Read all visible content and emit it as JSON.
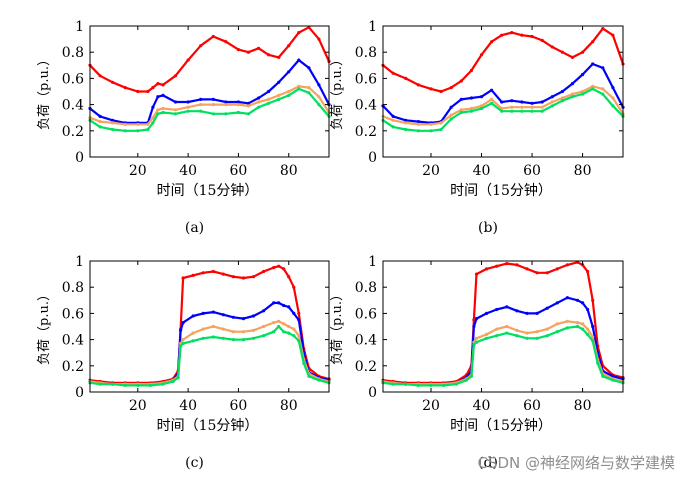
{
  "chart_data": [
    {
      "type": "line",
      "panel_label": "(a)",
      "xlabel": "时间（15分钟）",
      "ylabel": "负荷（p.u.）",
      "xlim": [
        1,
        96
      ],
      "ylim": [
        0,
        1
      ],
      "xticks": [
        20,
        40,
        60,
        80
      ],
      "yticks": [
        0,
        0.2,
        0.4,
        0.6,
        0.8,
        1
      ],
      "ytick_labels": [
        "0",
        "0.2",
        "0.4",
        "0.6",
        "0.8",
        "1"
      ],
      "series": [
        {
          "name": "red",
          "color": "#ff0000",
          "x": [
            1,
            5,
            10,
            15,
            20,
            24,
            26,
            28,
            30,
            35,
            40,
            45,
            50,
            55,
            60,
            64,
            68,
            72,
            76,
            80,
            84,
            88,
            92,
            96
          ],
          "y": [
            0.7,
            0.62,
            0.57,
            0.53,
            0.5,
            0.5,
            0.53,
            0.56,
            0.55,
            0.62,
            0.74,
            0.85,
            0.92,
            0.88,
            0.82,
            0.8,
            0.83,
            0.78,
            0.76,
            0.85,
            0.95,
            0.99,
            0.9,
            0.73
          ]
        },
        {
          "name": "blue",
          "color": "#0000ff",
          "x": [
            1,
            5,
            10,
            15,
            20,
            24,
            26,
            28,
            30,
            35,
            40,
            45,
            50,
            55,
            60,
            64,
            68,
            72,
            76,
            80,
            84,
            88,
            92,
            96
          ],
          "y": [
            0.37,
            0.31,
            0.28,
            0.26,
            0.26,
            0.26,
            0.38,
            0.46,
            0.47,
            0.42,
            0.42,
            0.44,
            0.44,
            0.42,
            0.42,
            0.41,
            0.45,
            0.5,
            0.57,
            0.65,
            0.74,
            0.68,
            0.55,
            0.4
          ]
        },
        {
          "name": "orange",
          "color": "#f4a460",
          "x": [
            1,
            5,
            10,
            15,
            20,
            24,
            26,
            28,
            30,
            35,
            40,
            45,
            50,
            55,
            60,
            64,
            68,
            72,
            76,
            80,
            84,
            88,
            92,
            96
          ],
          "y": [
            0.3,
            0.27,
            0.26,
            0.25,
            0.25,
            0.25,
            0.3,
            0.36,
            0.37,
            0.36,
            0.38,
            0.4,
            0.4,
            0.4,
            0.4,
            0.39,
            0.42,
            0.44,
            0.47,
            0.5,
            0.54,
            0.53,
            0.46,
            0.34
          ]
        },
        {
          "name": "green",
          "color": "#00e060",
          "x": [
            1,
            5,
            10,
            15,
            20,
            24,
            26,
            28,
            30,
            35,
            40,
            45,
            50,
            55,
            60,
            64,
            68,
            72,
            76,
            80,
            84,
            88,
            92,
            96
          ],
          "y": [
            0.28,
            0.23,
            0.21,
            0.2,
            0.2,
            0.21,
            0.26,
            0.33,
            0.34,
            0.33,
            0.35,
            0.35,
            0.33,
            0.33,
            0.34,
            0.33,
            0.38,
            0.41,
            0.44,
            0.47,
            0.52,
            0.49,
            0.4,
            0.31
          ]
        }
      ]
    },
    {
      "type": "line",
      "panel_label": "(b)",
      "xlabel": "时间（15分钟）",
      "ylabel": "负荷（p.u.）",
      "xlim": [
        1,
        96
      ],
      "ylim": [
        0,
        1
      ],
      "xticks": [
        20,
        40,
        60,
        80
      ],
      "yticks": [
        0,
        0.2,
        0.4,
        0.6,
        0.8,
        1
      ],
      "ytick_labels": [
        "0",
        "0.2",
        "0.4",
        "0.6",
        "0.8",
        "1"
      ],
      "series": [
        {
          "name": "red",
          "color": "#ff0000",
          "x": [
            1,
            5,
            10,
            15,
            20,
            24,
            28,
            32,
            36,
            40,
            44,
            48,
            52,
            56,
            60,
            64,
            68,
            72,
            76,
            80,
            84,
            88,
            92,
            96
          ],
          "y": [
            0.7,
            0.64,
            0.6,
            0.55,
            0.52,
            0.5,
            0.53,
            0.58,
            0.66,
            0.78,
            0.88,
            0.93,
            0.95,
            0.93,
            0.92,
            0.89,
            0.84,
            0.8,
            0.76,
            0.8,
            0.88,
            0.98,
            0.93,
            0.71
          ]
        },
        {
          "name": "blue",
          "color": "#0000ff",
          "x": [
            1,
            5,
            10,
            15,
            20,
            24,
            28,
            32,
            36,
            40,
            44,
            48,
            52,
            56,
            60,
            64,
            68,
            72,
            76,
            80,
            84,
            88,
            92,
            96
          ],
          "y": [
            0.39,
            0.31,
            0.28,
            0.27,
            0.26,
            0.27,
            0.38,
            0.44,
            0.45,
            0.46,
            0.51,
            0.42,
            0.43,
            0.42,
            0.41,
            0.42,
            0.46,
            0.5,
            0.56,
            0.63,
            0.71,
            0.68,
            0.53,
            0.38
          ]
        },
        {
          "name": "orange",
          "color": "#f4a460",
          "x": [
            1,
            5,
            10,
            15,
            20,
            24,
            28,
            32,
            36,
            40,
            44,
            48,
            52,
            56,
            60,
            64,
            68,
            72,
            76,
            80,
            84,
            88,
            92,
            96
          ],
          "y": [
            0.31,
            0.28,
            0.26,
            0.25,
            0.25,
            0.26,
            0.32,
            0.36,
            0.37,
            0.39,
            0.44,
            0.37,
            0.38,
            0.38,
            0.38,
            0.38,
            0.42,
            0.45,
            0.48,
            0.5,
            0.54,
            0.52,
            0.45,
            0.33
          ]
        },
        {
          "name": "green",
          "color": "#00e060",
          "x": [
            1,
            5,
            10,
            15,
            20,
            24,
            28,
            32,
            36,
            40,
            44,
            48,
            52,
            56,
            60,
            64,
            68,
            72,
            76,
            80,
            84,
            88,
            92,
            96
          ],
          "y": [
            0.28,
            0.23,
            0.21,
            0.2,
            0.2,
            0.21,
            0.29,
            0.34,
            0.35,
            0.37,
            0.41,
            0.35,
            0.35,
            0.35,
            0.35,
            0.35,
            0.39,
            0.43,
            0.46,
            0.48,
            0.52,
            0.48,
            0.39,
            0.31
          ]
        }
      ]
    },
    {
      "type": "line",
      "panel_label": "(c)",
      "xlabel": "时间（15分钟）",
      "ylabel": "负荷（p.u.）",
      "xlim": [
        1,
        96
      ],
      "ylim": [
        0,
        1
      ],
      "xticks": [
        20,
        40,
        60,
        80
      ],
      "yticks": [
        0,
        0.2,
        0.4,
        0.6,
        0.8,
        1
      ],
      "ytick_labels": [
        "0",
        "0.2",
        "0.4",
        "0.6",
        "0.8",
        "1"
      ],
      "series": [
        {
          "name": "red",
          "color": "#ff0000",
          "x": [
            1,
            5,
            10,
            15,
            20,
            25,
            30,
            34,
            36,
            37,
            38,
            42,
            46,
            50,
            54,
            58,
            62,
            66,
            70,
            74,
            76,
            78,
            80,
            82,
            84,
            86,
            88,
            92,
            96
          ],
          "y": [
            0.09,
            0.08,
            0.07,
            0.07,
            0.07,
            0.07,
            0.08,
            0.1,
            0.16,
            0.48,
            0.87,
            0.89,
            0.91,
            0.92,
            0.9,
            0.88,
            0.87,
            0.88,
            0.92,
            0.95,
            0.96,
            0.94,
            0.88,
            0.8,
            0.6,
            0.33,
            0.18,
            0.12,
            0.1
          ]
        },
        {
          "name": "blue",
          "color": "#0000ff",
          "x": [
            1,
            5,
            10,
            15,
            20,
            25,
            30,
            34,
            36,
            37,
            38,
            42,
            46,
            50,
            54,
            58,
            62,
            66,
            70,
            74,
            76,
            78,
            80,
            82,
            84,
            86,
            88,
            92,
            96
          ],
          "y": [
            0.08,
            0.07,
            0.06,
            0.06,
            0.06,
            0.06,
            0.07,
            0.09,
            0.14,
            0.47,
            0.53,
            0.58,
            0.6,
            0.61,
            0.59,
            0.57,
            0.56,
            0.58,
            0.62,
            0.68,
            0.68,
            0.66,
            0.65,
            0.6,
            0.55,
            0.3,
            0.15,
            0.11,
            0.09
          ]
        },
        {
          "name": "orange",
          "color": "#f4a460",
          "x": [
            1,
            5,
            10,
            15,
            20,
            25,
            30,
            34,
            36,
            37,
            38,
            42,
            46,
            50,
            54,
            58,
            62,
            66,
            70,
            74,
            76,
            78,
            80,
            82,
            84,
            86,
            88,
            92,
            96
          ],
          "y": [
            0.08,
            0.07,
            0.06,
            0.06,
            0.06,
            0.06,
            0.07,
            0.09,
            0.12,
            0.37,
            0.4,
            0.45,
            0.48,
            0.5,
            0.48,
            0.46,
            0.46,
            0.47,
            0.5,
            0.53,
            0.54,
            0.52,
            0.5,
            0.48,
            0.43,
            0.25,
            0.14,
            0.1,
            0.08
          ]
        },
        {
          "name": "green",
          "color": "#00e060",
          "x": [
            1,
            5,
            10,
            15,
            20,
            25,
            30,
            34,
            36,
            37,
            38,
            42,
            46,
            50,
            54,
            58,
            62,
            66,
            70,
            74,
            76,
            78,
            80,
            82,
            84,
            86,
            88,
            92,
            96
          ],
          "y": [
            0.07,
            0.06,
            0.06,
            0.05,
            0.05,
            0.05,
            0.06,
            0.08,
            0.11,
            0.35,
            0.37,
            0.39,
            0.41,
            0.42,
            0.41,
            0.4,
            0.4,
            0.41,
            0.43,
            0.46,
            0.5,
            0.46,
            0.45,
            0.43,
            0.39,
            0.22,
            0.12,
            0.09,
            0.07
          ]
        }
      ]
    },
    {
      "type": "line",
      "panel_label": "(d)",
      "xlabel": "时间（15分钟）",
      "ylabel": "负荷（p.u.）",
      "xlim": [
        1,
        96
      ],
      "ylim": [
        0,
        1
      ],
      "xticks": [
        20,
        40,
        60,
        80
      ],
      "yticks": [
        0,
        0.2,
        0.4,
        0.6,
        0.8,
        1
      ],
      "ytick_labels": [
        "0",
        "0.2",
        "0.4",
        "0.6",
        "0.8",
        "1"
      ],
      "series": [
        {
          "name": "red",
          "color": "#ff0000",
          "x": [
            1,
            5,
            10,
            15,
            20,
            25,
            30,
            34,
            36,
            37,
            38,
            42,
            46,
            50,
            54,
            58,
            62,
            66,
            70,
            74,
            78,
            80,
            82,
            84,
            86,
            88,
            92,
            96
          ],
          "y": [
            0.09,
            0.08,
            0.07,
            0.07,
            0.07,
            0.07,
            0.08,
            0.13,
            0.2,
            0.55,
            0.9,
            0.94,
            0.96,
            0.98,
            0.97,
            0.94,
            0.91,
            0.91,
            0.94,
            0.97,
            0.99,
            0.97,
            0.92,
            0.7,
            0.35,
            0.2,
            0.13,
            0.11
          ]
        },
        {
          "name": "blue",
          "color": "#0000ff",
          "x": [
            1,
            5,
            10,
            15,
            20,
            25,
            30,
            34,
            36,
            37,
            38,
            42,
            46,
            50,
            54,
            58,
            62,
            66,
            70,
            74,
            78,
            80,
            82,
            84,
            86,
            88,
            92,
            96
          ],
          "y": [
            0.08,
            0.07,
            0.06,
            0.06,
            0.06,
            0.06,
            0.07,
            0.11,
            0.16,
            0.5,
            0.56,
            0.6,
            0.63,
            0.65,
            0.62,
            0.6,
            0.6,
            0.64,
            0.68,
            0.72,
            0.7,
            0.68,
            0.63,
            0.5,
            0.3,
            0.16,
            0.12,
            0.1
          ]
        },
        {
          "name": "orange",
          "color": "#f4a460",
          "x": [
            1,
            5,
            10,
            15,
            20,
            25,
            30,
            34,
            36,
            37,
            38,
            42,
            46,
            50,
            54,
            58,
            62,
            66,
            70,
            74,
            78,
            80,
            82,
            84,
            86,
            88,
            92,
            96
          ],
          "y": [
            0.08,
            0.07,
            0.06,
            0.06,
            0.06,
            0.06,
            0.07,
            0.1,
            0.13,
            0.38,
            0.41,
            0.44,
            0.48,
            0.5,
            0.47,
            0.45,
            0.46,
            0.48,
            0.52,
            0.54,
            0.53,
            0.52,
            0.48,
            0.42,
            0.25,
            0.14,
            0.1,
            0.08
          ]
        },
        {
          "name": "green",
          "color": "#00e060",
          "x": [
            1,
            5,
            10,
            15,
            20,
            25,
            30,
            34,
            36,
            37,
            38,
            42,
            46,
            50,
            54,
            58,
            62,
            66,
            70,
            74,
            78,
            80,
            82,
            84,
            86,
            88,
            92,
            96
          ],
          "y": [
            0.07,
            0.06,
            0.06,
            0.05,
            0.05,
            0.05,
            0.06,
            0.09,
            0.12,
            0.36,
            0.38,
            0.41,
            0.43,
            0.45,
            0.43,
            0.41,
            0.41,
            0.43,
            0.46,
            0.49,
            0.5,
            0.48,
            0.44,
            0.39,
            0.22,
            0.12,
            0.09,
            0.07
          ]
        }
      ]
    }
  ],
  "watermark": "CSDN @神经网络与数学建模"
}
